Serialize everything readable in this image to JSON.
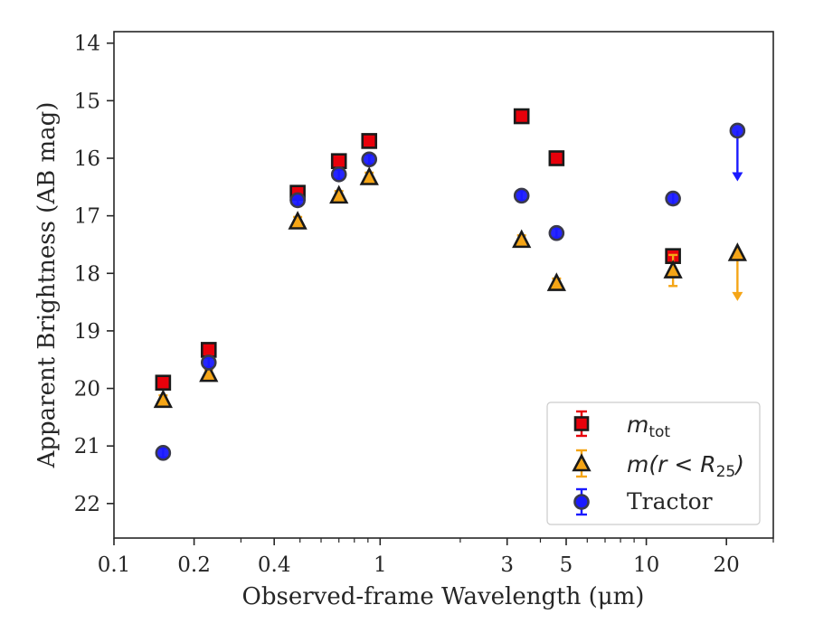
{
  "chart_data": {
    "type": "scatter",
    "xlabel": "Observed-frame Wavelength (μm)",
    "ylabel": "Apparent Brightness (AB mag)",
    "x_scale": "log",
    "xlim": [
      0.1,
      30
    ],
    "ylim": [
      22.6,
      13.8
    ],
    "y_inverted": true,
    "x_ticks": [
      {
        "value": 0.1,
        "label": "0.1"
      },
      {
        "value": 0.2,
        "label": "0.2"
      },
      {
        "value": 0.4,
        "label": "0.4"
      },
      {
        "value": 1,
        "label": "1"
      },
      {
        "value": 3,
        "label": "3"
      },
      {
        "value": 5,
        "label": "5"
      },
      {
        "value": 10,
        "label": "10"
      },
      {
        "value": 20,
        "label": "20"
      }
    ],
    "y_ticks": [
      {
        "value": 14,
        "label": "14"
      },
      {
        "value": 15,
        "label": "15"
      },
      {
        "value": 16,
        "label": "16"
      },
      {
        "value": 17,
        "label": "17"
      },
      {
        "value": 18,
        "label": "18"
      },
      {
        "value": 19,
        "label": "19"
      },
      {
        "value": 20,
        "label": "20"
      },
      {
        "value": 21,
        "label": "21"
      },
      {
        "value": 22,
        "label": "22"
      }
    ],
    "grid": false,
    "legend_position": "bottom-right",
    "series": [
      {
        "name": "m_tot",
        "marker": "square",
        "color": "#e8000b",
        "points": [
          {
            "x": 0.153,
            "y": 19.9
          },
          {
            "x": 0.227,
            "y": 19.33
          },
          {
            "x": 0.49,
            "y": 16.6
          },
          {
            "x": 0.7,
            "y": 16.05
          },
          {
            "x": 0.91,
            "y": 15.7
          },
          {
            "x": 3.4,
            "y": 15.27
          },
          {
            "x": 4.6,
            "y": 16.0
          },
          {
            "x": 12.6,
            "y": 17.7
          }
        ]
      },
      {
        "name": "m(r < R_25)",
        "marker": "triangle",
        "color": "#f5a516",
        "points": [
          {
            "x": 0.153,
            "y": 20.2
          },
          {
            "x": 0.227,
            "y": 19.75
          },
          {
            "x": 0.49,
            "y": 17.1
          },
          {
            "x": 0.7,
            "y": 16.65
          },
          {
            "x": 0.91,
            "y": 16.33
          },
          {
            "x": 3.4,
            "y": 17.42
          },
          {
            "x": 4.6,
            "y": 18.17
          },
          {
            "x": 12.6,
            "y": 17.95,
            "yerr": 0.27
          },
          {
            "x": 22.0,
            "y": 17.65,
            "upper_limit": true
          }
        ]
      },
      {
        "name": "Tractor",
        "marker": "circle",
        "color": "#1a1aff",
        "points": [
          {
            "x": 0.153,
            "y": 21.12
          },
          {
            "x": 0.227,
            "y": 19.55
          },
          {
            "x": 0.49,
            "y": 16.73
          },
          {
            "x": 0.7,
            "y": 16.28
          },
          {
            "x": 0.91,
            "y": 16.02
          },
          {
            "x": 3.4,
            "y": 16.65
          },
          {
            "x": 4.6,
            "y": 17.3
          },
          {
            "x": 12.6,
            "y": 16.7,
            "yerr": 0.1
          },
          {
            "x": 22.0,
            "y": 15.52,
            "upper_limit": true
          }
        ]
      }
    ]
  },
  "legend": {
    "m_tot": {
      "base": "m",
      "sub": "tot"
    },
    "m_r": {
      "text": "m(r < R",
      "sub": "25",
      "close": ")"
    },
    "tractor": {
      "text": "Tractor"
    }
  }
}
